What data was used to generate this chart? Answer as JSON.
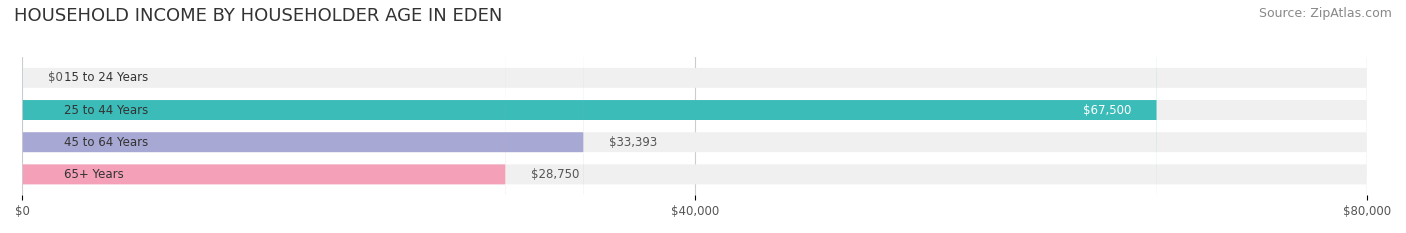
{
  "title": "HOUSEHOLD INCOME BY HOUSEHOLDER AGE IN EDEN",
  "source": "Source: ZipAtlas.com",
  "categories": [
    "15 to 24 Years",
    "25 to 44 Years",
    "45 to 64 Years",
    "65+ Years"
  ],
  "values": [
    0,
    67500,
    33393,
    28750
  ],
  "bar_colors": [
    "#c9a8d4",
    "#3bbcb8",
    "#a8a8d4",
    "#f4a0b8"
  ],
  "bar_bg_color": "#f0f0f0",
  "label_colors": [
    "#555555",
    "#ffffff",
    "#555555",
    "#555555"
  ],
  "label_texts": [
    "$0",
    "$67,500",
    "$33,393",
    "$28,750"
  ],
  "xlim": [
    0,
    80000
  ],
  "xtick_vals": [
    0,
    40000,
    80000
  ],
  "xtick_labels": [
    "$0",
    "$40,000",
    "$80,000"
  ],
  "background_color": "#ffffff",
  "title_fontsize": 13,
  "source_fontsize": 9,
  "bar_height": 0.62,
  "figsize": [
    14.06,
    2.33
  ],
  "dpi": 100
}
